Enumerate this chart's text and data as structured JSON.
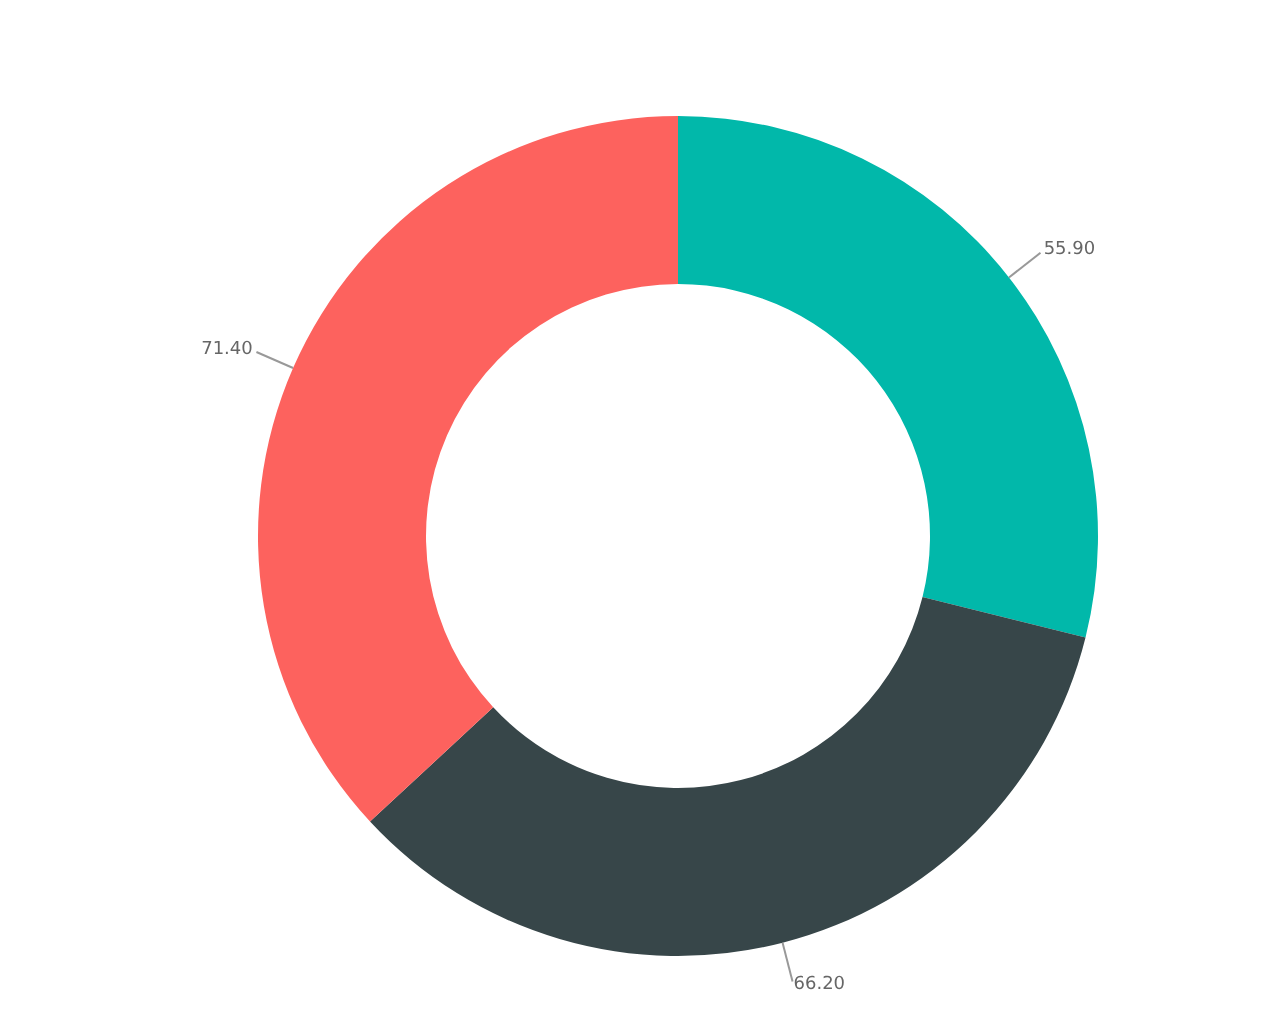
{
  "chart_data": {
    "type": "donut",
    "categories": [
      null,
      null,
      null
    ],
    "values": [
      55.9,
      66.2,
      71.4
    ],
    "colors": [
      "#01b8aa",
      "#374649",
      "#fd625e"
    ],
    "value_labels": [
      "55.90",
      "66.20",
      "71.40"
    ],
    "legend": false
  }
}
